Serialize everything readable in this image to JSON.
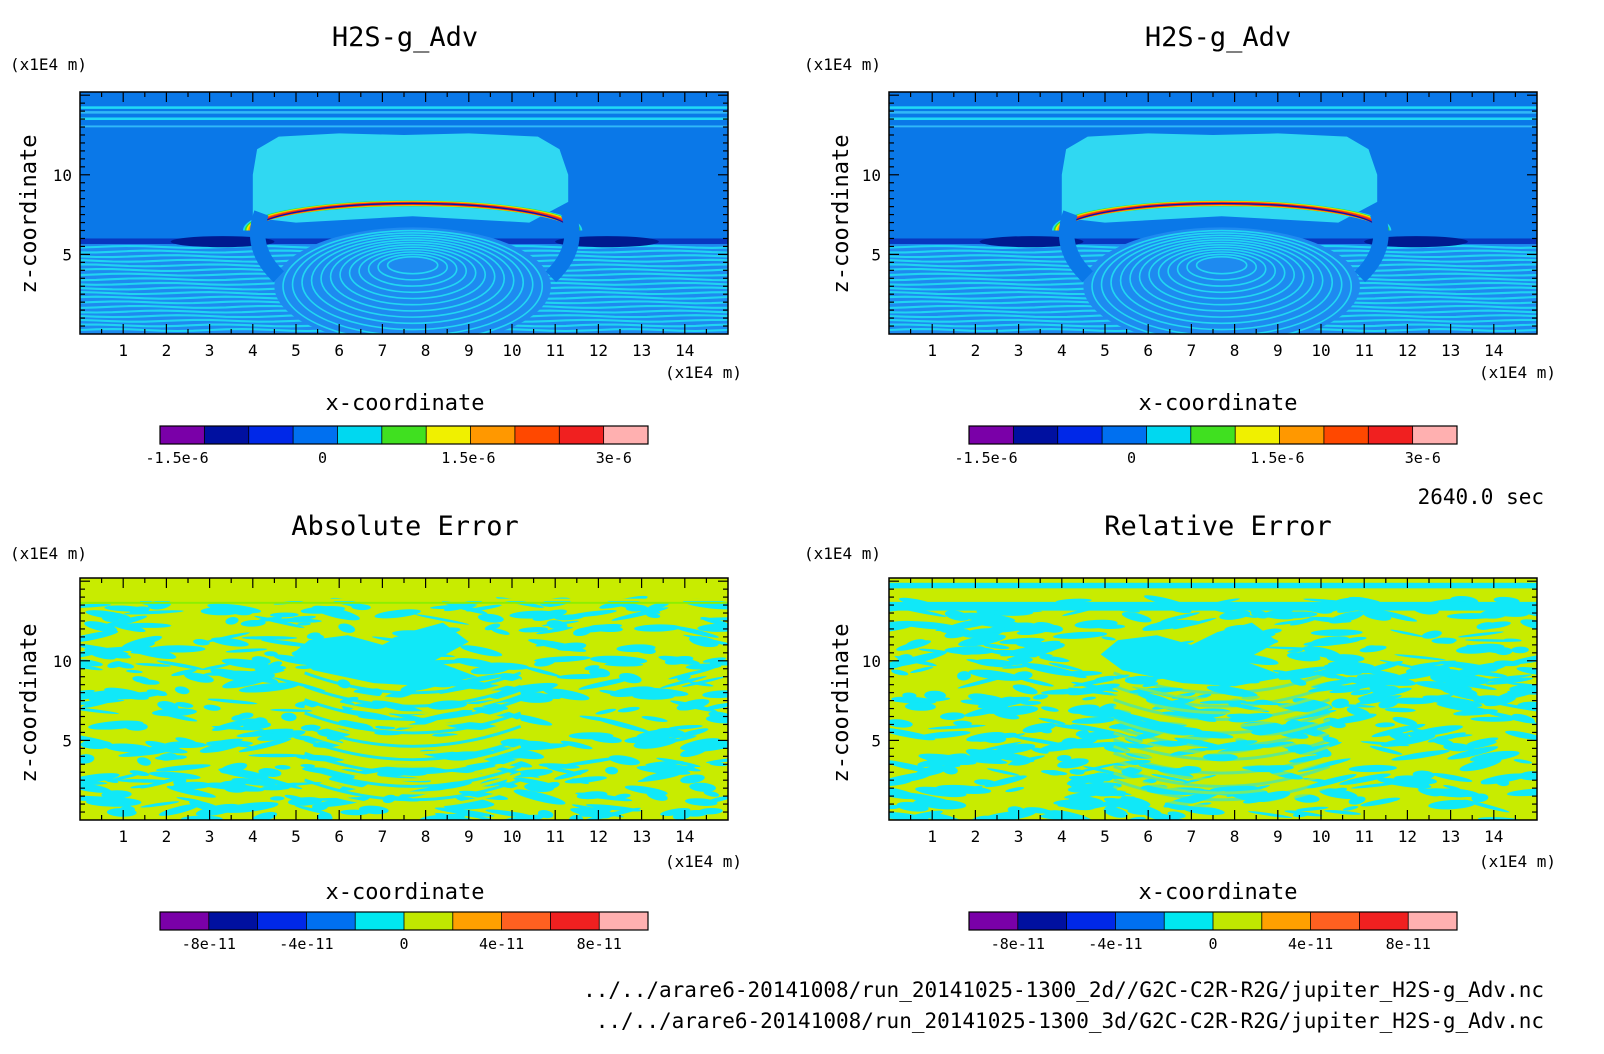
{
  "panels": [
    {
      "kind": "field",
      "title": "H2S-g_Adv",
      "xlabel": "x-coordinate",
      "ylabel": "z-coordinate",
      "x_unit": "(x1E4 m)",
      "y_unit": "(x1E4 m)",
      "x_ticks": [
        "1",
        "2",
        "3",
        "4",
        "5",
        "6",
        "7",
        "8",
        "9",
        "10",
        "11",
        "12",
        "13",
        "14"
      ],
      "y_ticks": [
        "5",
        "10"
      ],
      "colorbar": {
        "colors": [
          "#7a00a8",
          "#0010a0",
          "#0028e8",
          "#0070f0",
          "#00d8f0",
          "#40e020",
          "#f0f000",
          "#ff9800",
          "#ff4800",
          "#f02020",
          "#ffb0b0"
        ],
        "tick_labels": [
          "-1.5e-6",
          "0",
          "1.5e-6",
          "3e-6"
        ]
      }
    },
    {
      "kind": "field",
      "title": "H2S-g_Adv",
      "xlabel": "x-coordinate",
      "ylabel": "z-coordinate",
      "x_unit": "(x1E4 m)",
      "y_unit": "(x1E4 m)",
      "x_ticks": [
        "1",
        "2",
        "3",
        "4",
        "5",
        "6",
        "7",
        "8",
        "9",
        "10",
        "11",
        "12",
        "13",
        "14"
      ],
      "y_ticks": [
        "5",
        "10"
      ],
      "colorbar": {
        "colors": [
          "#7a00a8",
          "#0010a0",
          "#0028e8",
          "#0070f0",
          "#00d8f0",
          "#40e020",
          "#f0f000",
          "#ff9800",
          "#ff4800",
          "#f02020",
          "#ffb0b0"
        ],
        "tick_labels": [
          "-1.5e-6",
          "0",
          "1.5e-6",
          "3e-6"
        ]
      }
    },
    {
      "kind": "abserr",
      "title": "Absolute Error",
      "xlabel": "x-coordinate",
      "ylabel": "z-coordinate",
      "x_unit": "(x1E4 m)",
      "y_unit": "(x1E4 m)",
      "x_ticks": [
        "1",
        "2",
        "3",
        "4",
        "5",
        "6",
        "7",
        "8",
        "9",
        "10",
        "11",
        "12",
        "13",
        "14"
      ],
      "y_ticks": [
        "5",
        "10"
      ],
      "colorbar": {
        "colors": [
          "#7a00a8",
          "#0010a0",
          "#0028e8",
          "#0070f0",
          "#00e8f0",
          "#c0e800",
          "#ffa000",
          "#ff6020",
          "#f02020",
          "#ffb0b0"
        ],
        "tick_labels": [
          "-8e-11",
          "-4e-11",
          "0",
          "4e-11",
          "8e-11"
        ]
      }
    },
    {
      "kind": "relerr",
      "title": "Relative Error",
      "xlabel": "x-coordinate",
      "ylabel": "z-coordinate",
      "x_unit": "(x1E4 m)",
      "y_unit": "(x1E4 m)",
      "x_ticks": [
        "1",
        "2",
        "3",
        "4",
        "5",
        "6",
        "7",
        "8",
        "9",
        "10",
        "11",
        "12",
        "13",
        "14"
      ],
      "y_ticks": [
        "5",
        "10"
      ],
      "colorbar": {
        "colors": [
          "#7a00a8",
          "#0010a0",
          "#0028e8",
          "#0070f0",
          "#00e8f0",
          "#c0e800",
          "#ffa000",
          "#ff6020",
          "#f02020",
          "#ffb0b0"
        ],
        "tick_labels": [
          "-8e-11",
          "-4e-11",
          "0",
          "4e-11",
          "8e-11"
        ]
      }
    }
  ],
  "time_label": "2640.0 sec",
  "files": [
    "../../arare6-20141008/run_20141025-1300_2d//G2C-C2R-R2G/jupiter_H2S-g_Adv.nc",
    "../../arare6-20141008/run_20141025-1300_3d/G2C-C2R-R2G/jupiter_H2S-g_Adv.nc"
  ],
  "chart_data": [
    {
      "type": "heatmap",
      "title": "H2S-g_Adv",
      "xlabel": "x-coordinate",
      "ylabel": "z-coordinate",
      "xlim": [
        0,
        15
      ],
      "ylim": [
        0,
        15
      ],
      "x_ticks": [
        1,
        2,
        3,
        4,
        5,
        6,
        7,
        8,
        9,
        10,
        11,
        12,
        13,
        14
      ],
      "y_ticks": [
        5,
        10
      ],
      "colorbar_ticks": [
        -1.5e-06,
        0,
        1.5e-06,
        3e-06
      ]
    },
    {
      "type": "heatmap",
      "title": "H2S-g_Adv",
      "xlabel": "x-coordinate",
      "ylabel": "z-coordinate",
      "xlim": [
        0,
        15
      ],
      "ylim": [
        0,
        15
      ],
      "x_ticks": [
        1,
        2,
        3,
        4,
        5,
        6,
        7,
        8,
        9,
        10,
        11,
        12,
        13,
        14
      ],
      "y_ticks": [
        5,
        10
      ],
      "colorbar_ticks": [
        -1.5e-06,
        0,
        1.5e-06,
        3e-06
      ]
    },
    {
      "type": "heatmap",
      "title": "Absolute Error",
      "xlabel": "x-coordinate",
      "ylabel": "z-coordinate",
      "xlim": [
        0,
        15
      ],
      "ylim": [
        0,
        15
      ],
      "x_ticks": [
        1,
        2,
        3,
        4,
        5,
        6,
        7,
        8,
        9,
        10,
        11,
        12,
        13,
        14
      ],
      "y_ticks": [
        5,
        10
      ],
      "colorbar_ticks": [
        -8e-11,
        -4e-11,
        0,
        4e-11,
        8e-11
      ]
    },
    {
      "type": "heatmap",
      "title": "Relative Error",
      "xlabel": "x-coordinate",
      "ylabel": "z-coordinate",
      "xlim": [
        0,
        15
      ],
      "ylim": [
        0,
        15
      ],
      "x_ticks": [
        1,
        2,
        3,
        4,
        5,
        6,
        7,
        8,
        9,
        10,
        11,
        12,
        13,
        14
      ],
      "y_ticks": [
        5,
        10
      ],
      "colorbar_ticks": [
        -8e-11,
        -4e-11,
        0,
        4e-11,
        8e-11
      ]
    }
  ]
}
